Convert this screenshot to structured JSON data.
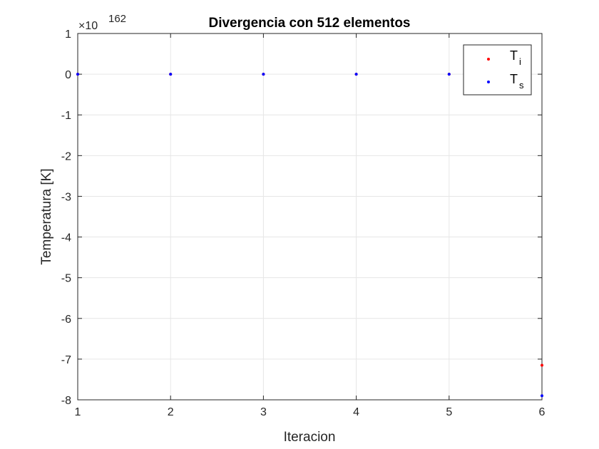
{
  "chart_data": {
    "type": "scatter",
    "title": "Divergencia con 512 elementos",
    "xlabel": "Iteracion",
    "ylabel": "Temperatura [K]",
    "y_exponent_label": "×10",
    "y_exponent": "162",
    "xlim": [
      1,
      6
    ],
    "ylim": [
      -8,
      1
    ],
    "xticks": [
      1,
      2,
      3,
      4,
      5,
      6
    ],
    "yticks": [
      1,
      0,
      -1,
      -2,
      -3,
      -4,
      -5,
      -6,
      -7,
      -8
    ],
    "grid": true,
    "legend_position": "top-right",
    "series": [
      {
        "name": "T",
        "subscript": "i",
        "color": "#ff0000",
        "x": [
          1,
          2,
          3,
          4,
          5,
          6
        ],
        "y": [
          0,
          0,
          0,
          0,
          0,
          -7.15
        ]
      },
      {
        "name": "T",
        "subscript": "s",
        "color": "#0000ff",
        "x": [
          1,
          2,
          3,
          4,
          5,
          6
        ],
        "y": [
          0,
          0,
          0,
          0,
          0,
          -7.9
        ]
      }
    ]
  }
}
